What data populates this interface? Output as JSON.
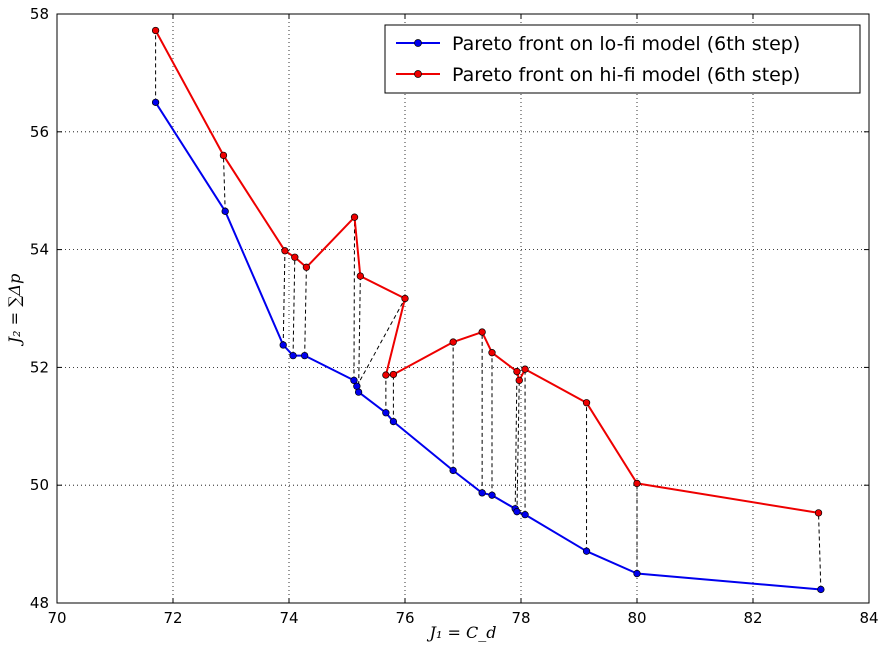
{
  "chart_data": {
    "type": "line",
    "title": "",
    "xlabel": "J₁ = C_d",
    "ylabel": "J₂ = ∑Δp",
    "xlim": [
      70,
      84
    ],
    "ylim": [
      48,
      58
    ],
    "xticks": [
      "70",
      "72",
      "74",
      "76",
      "78",
      "80",
      "82",
      "84"
    ],
    "yticks": [
      "48",
      "50",
      "52",
      "54",
      "56",
      "58"
    ],
    "grid": true,
    "grid_style": "dotted",
    "legend_position": "top-right",
    "colors": {
      "lofi": "#0000ee",
      "hifi": "#ee0000",
      "connector": "#000000"
    },
    "series": [
      {
        "name": "Pareto front on lo-fi model (6th step)",
        "color": "#0000ee",
        "points": [
          [
            71.7,
            56.5
          ],
          [
            72.9,
            54.65
          ],
          [
            73.9,
            52.38
          ],
          [
            74.07,
            52.2
          ],
          [
            74.27,
            52.2
          ],
          [
            75.12,
            51.78
          ],
          [
            75.17,
            51.68
          ],
          [
            75.2,
            51.58
          ],
          [
            75.67,
            51.23
          ],
          [
            75.8,
            51.08
          ],
          [
            76.83,
            50.25
          ],
          [
            77.33,
            49.87
          ],
          [
            77.5,
            49.83
          ],
          [
            77.9,
            49.6
          ],
          [
            77.93,
            49.55
          ],
          [
            78.07,
            49.5
          ],
          [
            79.13,
            48.88
          ],
          [
            80.0,
            48.5
          ],
          [
            83.17,
            48.23
          ]
        ]
      },
      {
        "name": "Pareto front on hi-fi model (6th step)",
        "color": "#ee0000",
        "points": [
          [
            71.7,
            57.72
          ],
          [
            72.87,
            55.6
          ],
          [
            73.93,
            53.98
          ],
          [
            74.1,
            53.87
          ],
          [
            74.3,
            53.7
          ],
          [
            75.13,
            54.55
          ],
          [
            75.23,
            53.55
          ],
          [
            76.0,
            53.17
          ],
          [
            75.67,
            51.87
          ],
          [
            75.8,
            51.88
          ],
          [
            76.83,
            52.43
          ],
          [
            77.33,
            52.6
          ],
          [
            77.5,
            52.25
          ],
          [
            77.93,
            51.93
          ],
          [
            77.97,
            51.78
          ],
          [
            78.07,
            51.97
          ],
          [
            79.13,
            51.4
          ],
          [
            80.0,
            50.03
          ],
          [
            83.13,
            49.53
          ]
        ]
      }
    ],
    "connectors": [
      [
        0,
        0
      ],
      [
        1,
        1
      ],
      [
        2,
        2
      ],
      [
        3,
        3
      ],
      [
        4,
        4
      ],
      [
        5,
        5
      ],
      [
        6,
        7
      ],
      [
        7,
        6
      ],
      [
        8,
        8
      ],
      [
        9,
        9
      ],
      [
        10,
        10
      ],
      [
        11,
        11
      ],
      [
        12,
        12
      ],
      [
        13,
        13
      ],
      [
        14,
        14
      ],
      [
        15,
        15
      ],
      [
        16,
        16
      ],
      [
        17,
        17
      ],
      [
        18,
        18
      ]
    ]
  }
}
